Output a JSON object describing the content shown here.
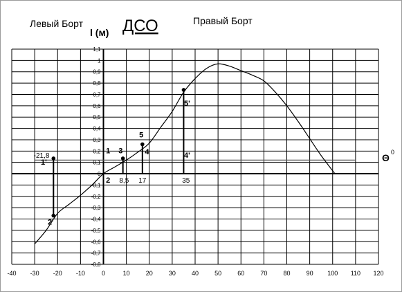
{
  "chart_data": {
    "type": "line",
    "title": "ДСО",
    "left_side_label": "Левый Борт",
    "right_side_label": "Правый Борт",
    "ylabel": "l (м)",
    "xlabel": "Θ",
    "xlabel_superscript": "0",
    "xlim": [
      -40,
      120
    ],
    "ylim": [
      -0.8,
      1.1
    ],
    "x_ticks": [
      -40,
      -30,
      -20,
      -10,
      0,
      10,
      20,
      30,
      40,
      50,
      60,
      70,
      80,
      90,
      100,
      110,
      120
    ],
    "y_ticks": [
      1.1,
      1.0,
      0.9,
      0.8,
      0.7,
      0.6,
      0.5,
      0.4,
      0.3,
      0.2,
      0.1,
      0,
      -0.1,
      -0.2,
      -0.3,
      -0.4,
      -0.5,
      -0.6,
      -0.7,
      -0.8
    ],
    "x_tick_labels": [
      "-40",
      "-30",
      "-20",
      "-10",
      "0",
      "10",
      "20",
      "30",
      "40",
      "50",
      "60",
      "70",
      "80",
      "90",
      "100",
      "110",
      "120"
    ],
    "y_tick_labels": [
      "1,1",
      "1",
      "0,9",
      "0,8",
      "0,7",
      "0,6",
      "0,5",
      "0,4",
      "0,3",
      "0,2",
      "0,1",
      "0",
      "-0,1",
      "-0,2",
      "-0,3",
      "-0,4",
      "-0,5",
      "-0,6",
      "-0,7",
      "-0,8"
    ],
    "grid": true,
    "curve": {
      "x": [
        -30,
        -25,
        -20,
        -15,
        -10,
        -5,
        0,
        5,
        10,
        15,
        20,
        25,
        30,
        35,
        40,
        45,
        50,
        55,
        60,
        65,
        70,
        75,
        80,
        85,
        90,
        95,
        101
      ],
      "y": [
        -0.62,
        -0.5,
        -0.35,
        -0.27,
        -0.19,
        -0.1,
        0,
        0.06,
        0.12,
        0.19,
        0.27,
        0.41,
        0.55,
        0.72,
        0.84,
        0.93,
        0.97,
        0.95,
        0.91,
        0.87,
        0.82,
        0.72,
        0.6,
        0.46,
        0.31,
        0.16,
        0
      ]
    },
    "horizontal_line_y": 0.12,
    "segments": [
      {
        "x": -21.8,
        "y1": -0.37,
        "y2": 0.135
      },
      {
        "x": 8.5,
        "y1": 0,
        "y2": 0.135
      },
      {
        "x": 17,
        "y1": 0,
        "y2": 0.26
      },
      {
        "x": 35,
        "y1": 0,
        "y2": 0.74
      }
    ],
    "points": [
      {
        "x": -21.8,
        "y": 0.135
      },
      {
        "x": -21.8,
        "y": -0.37
      },
      {
        "x": 8.5,
        "y": 0.135
      },
      {
        "x": 17,
        "y": 0.26
      },
      {
        "x": 35,
        "y": 0.74
      }
    ],
    "annotations": [
      {
        "text": "-21,8",
        "x": -27,
        "y": 0.14,
        "bold": false
      },
      {
        "text": "1'",
        "x": -26,
        "y": 0.08,
        "bold": true
      },
      {
        "text": "2'",
        "x": -23,
        "y": -0.45,
        "bold": true
      },
      {
        "text": "1",
        "x": 2,
        "y": 0.18,
        "bold": true
      },
      {
        "text": "2",
        "x": 2,
        "y": -0.08,
        "bold": true
      },
      {
        "text": "3",
        "x": 7.5,
        "y": 0.18,
        "bold": true
      },
      {
        "text": "4",
        "x": 19,
        "y": 0.17,
        "bold": true
      },
      {
        "text": "5",
        "x": 16.5,
        "y": 0.32,
        "bold": true
      },
      {
        "text": "4'",
        "x": 36.5,
        "y": 0.14,
        "bold": true
      },
      {
        "text": "5'",
        "x": 36.5,
        "y": 0.6,
        "bold": true
      },
      {
        "text": "8,5",
        "x": 9,
        "y": -0.08,
        "bold": false
      },
      {
        "text": "17",
        "x": 17,
        "y": -0.08,
        "bold": false
      },
      {
        "text": "35",
        "x": 36,
        "y": -0.08,
        "bold": false
      }
    ]
  }
}
